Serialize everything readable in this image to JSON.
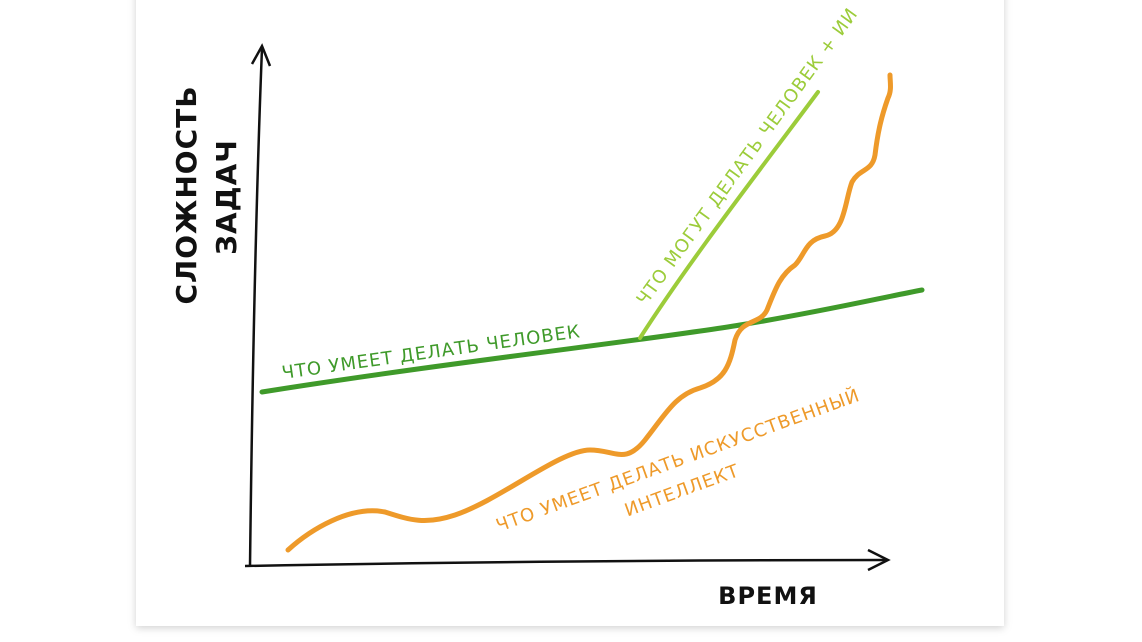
{
  "axes": {
    "y_label": [
      "СЛОЖНОСТЬ",
      "ЗАДАЧ"
    ],
    "x_label": "ВРЕМЯ"
  },
  "curves": [
    {
      "label": [
        "ЧТО УМЕЕТ ДЕЛАТЬ ЧЕЛОВЕК"
      ]
    },
    {
      "label": [
        "ЧТО МОГУТ ДЕЛАТЬ ЧЕЛОВЕК + ИИ"
      ]
    },
    {
      "label": [
        "ЧТО УМЕЕТ ДЕЛАТЬ ИСКУССТВЕННЫЙ",
        "ИНТЕЛЛЕКТ"
      ]
    }
  ]
}
